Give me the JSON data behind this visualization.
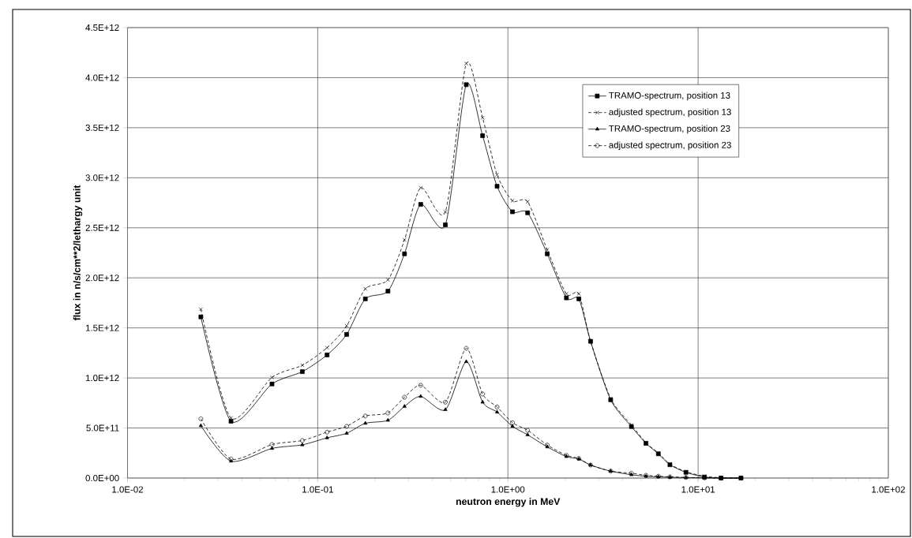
{
  "chart_data": {
    "type": "line",
    "xlabel": "neutron energy in MeV",
    "ylabel": "flux in n/s/cm**2/lethargy unit",
    "x": [
      0.0243,
      0.035,
      0.0575,
      0.083,
      0.112,
      0.142,
      0.178,
      0.234,
      0.286,
      0.348,
      0.469,
      0.604,
      0.736,
      0.877,
      1.057,
      1.27,
      1.61,
      2.03,
      2.36,
      2.72,
      3.47,
      4.46,
      5.32,
      6.18,
      7.11,
      8.63,
      10.8,
      13.2,
      16.8
    ],
    "series": [
      {
        "name": "TRAMO-spectrum, position 13",
        "color": "#000000",
        "marker": "square",
        "line_style": "solid",
        "values": [
          1610000000000.0,
          568000000000.0,
          940000000000.0,
          1063000000000.0,
          1230000000000.0,
          1435000000000.0,
          1790000000000.0,
          1867000000000.0,
          2240000000000.0,
          2734000000000.0,
          2530000000000.0,
          3930000000000.0,
          3420000000000.0,
          2915000000000.0,
          2660000000000.0,
          2650000000000.0,
          2240000000000.0,
          1800000000000.0,
          1790000000000.0,
          1366000000000.0,
          782000000000.0,
          514000000000.0,
          347000000000.0,
          242000000000.0,
          133000000000.0,
          57000000000.0,
          10000000000.0,
          0,
          0
        ]
      },
      {
        "name": "adjusted spectrum, position 13",
        "color": "#000000",
        "marker": "cross",
        "line_style": "dashed",
        "values": [
          1686000000000.0,
          600000000000.0,
          1006000000000.0,
          1127000000000.0,
          1302000000000.0,
          1520000000000.0,
          1890000000000.0,
          1980000000000.0,
          2380000000000.0,
          2900000000000.0,
          2660000000000.0,
          4140000000000.0,
          3600000000000.0,
          3030000000000.0,
          2770000000000.0,
          2760000000000.0,
          2280000000000.0,
          1840000000000.0,
          1840000000000.0,
          1366000000000.0,
          795000000000.0,
          530000000000.0,
          353000000000.0,
          250000000000.0,
          139000000000.0,
          63000000000.0,
          18000000000.0,
          3000000000.0,
          0
        ]
      },
      {
        "name": "TRAMO-spectrum, position 23",
        "color": "#000000",
        "marker": "triangle",
        "line_style": "solid",
        "values": [
          523000000000.0,
          169000000000.0,
          296000000000.0,
          332000000000.0,
          402000000000.0,
          447000000000.0,
          547000000000.0,
          577000000000.0,
          716000000000.0,
          816000000000.0,
          683000000000.0,
          1163000000000.0,
          758000000000.0,
          659000000000.0,
          517000000000.0,
          432000000000.0,
          311000000000.0,
          215000000000.0,
          190000000000.0,
          130000000000.0,
          69000000000.0,
          33000000000.0,
          18000000000.0,
          12000000000.0,
          8000000000.0,
          4000000000.0,
          2000000000.0,
          0,
          0
        ]
      },
      {
        "name": "adjusted spectrum, position 23",
        "color": "#000000",
        "marker": "circle",
        "line_style": "dashed",
        "values": [
          592000000000.0,
          190000000000.0,
          335000000000.0,
          375000000000.0,
          459000000000.0,
          517000000000.0,
          620000000000.0,
          650000000000.0,
          807000000000.0,
          927000000000.0,
          758000000000.0,
          1296000000000.0,
          840000000000.0,
          710000000000.0,
          553000000000.0,
          477000000000.0,
          330000000000.0,
          227000000000.0,
          196000000000.0,
          130000000000.0,
          69000000000.0,
          48000000000.0,
          27000000000.0,
          18000000000.0,
          12000000000.0,
          6000000000.0,
          2000000000.0,
          0,
          0
        ]
      }
    ],
    "log": "x",
    "xlim": [
      0.01,
      100
    ],
    "xticks": [
      {
        "value": 0.01,
        "label": "1.0E-02"
      },
      {
        "value": 0.1,
        "label": "1.0E-01"
      },
      {
        "value": 1,
        "label": "1.0E+00"
      },
      {
        "value": 10,
        "label": "1.0E+01"
      },
      {
        "value": 100,
        "label": "1.0E+02"
      }
    ],
    "ylim": [
      0,
      4500000000000.0
    ],
    "yticks": [
      {
        "value": 0,
        "label": "0.0E+00"
      },
      {
        "value": 500000000000.0,
        "label": "5.0E+11"
      },
      {
        "value": 1000000000000.0,
        "label": "1.0E+12"
      },
      {
        "value": 1500000000000.0,
        "label": "1.5E+12"
      },
      {
        "value": 2000000000000.0,
        "label": "2.0E+12"
      },
      {
        "value": 2500000000000.0,
        "label": "2.5E+12"
      },
      {
        "value": 3000000000000.0,
        "label": "3.0E+12"
      },
      {
        "value": 3500000000000.0,
        "label": "3.5E+12"
      },
      {
        "value": 4000000000000.0,
        "label": "4.0E+12"
      },
      {
        "value": 4500000000000.0,
        "label": "4.5E+12"
      }
    ],
    "grid": true,
    "legend": "top right"
  }
}
